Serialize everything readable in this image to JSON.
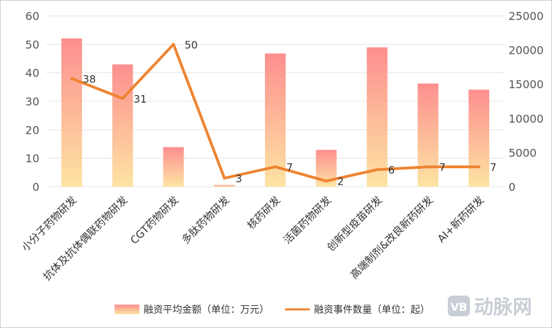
{
  "chart_data": {
    "type": "bar+line",
    "categories": [
      "小分子药物研发",
      "抗体及抗体偶联药物研发",
      "CGT药物研发",
      "多肽药物研发",
      "核药研发",
      "活菌药物研发",
      "创新型疫苗研发",
      "高端制剂&改良新药研发",
      "AI+新药研发"
    ],
    "series": [
      {
        "name": "融资平均金额（单位：万元）",
        "type": "bar",
        "axis": "right",
        "values": [
          21700,
          17900,
          5800,
          250,
          19500,
          5400,
          20400,
          15100,
          14200
        ]
      },
      {
        "name": "融资事件数量（单位：起）",
        "type": "line",
        "axis": "left",
        "values": [
          38,
          31,
          50,
          3,
          7,
          2,
          6,
          7,
          7
        ],
        "labels": [
          "38",
          "31",
          "50",
          "3",
          "7",
          "2",
          "6",
          "7",
          "7"
        ]
      }
    ],
    "y_left": {
      "range": [
        0,
        60
      ],
      "ticks": [
        "0",
        "10",
        "20",
        "30",
        "40",
        "50",
        "60"
      ]
    },
    "y_right": {
      "range": [
        0,
        25000
      ],
      "ticks": [
        "0",
        "5000",
        "10000",
        "15000",
        "20000",
        "25000"
      ]
    },
    "grid": true,
    "legend_placement": "bottom-center",
    "colors": {
      "bar_top": "#fd8f8f",
      "bar_bottom": "#fde4a3",
      "line": "#ee8431",
      "grid": "#e4e4e4"
    }
  },
  "watermark": {
    "badge": "VB",
    "text": "动脉网"
  }
}
